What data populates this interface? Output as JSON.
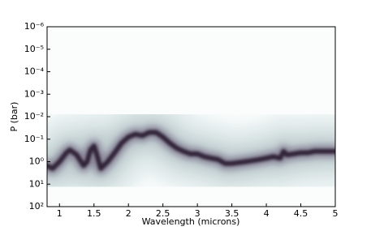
{
  "chart_data": {
    "type": "heatmap",
    "x_label": "Wavelength (microns)",
    "y_label": "P (bar)",
    "x": [
      0.82,
      0.9,
      1.0,
      1.1,
      1.15,
      1.25,
      1.35,
      1.4,
      1.45,
      1.5,
      1.55,
      1.6,
      1.7,
      1.8,
      1.9,
      2.0,
      2.1,
      2.2,
      2.3,
      2.4,
      2.5,
      2.6,
      2.7,
      2.8,
      2.9,
      3.0,
      3.1,
      3.2,
      3.3,
      3.4,
      3.5,
      3.6,
      3.7,
      3.8,
      3.9,
      4.0,
      4.1,
      4.2,
      4.25,
      4.3,
      4.4,
      4.5,
      4.6,
      4.7,
      4.8,
      4.9,
      5.0
    ],
    "values": [
      1.5,
      2,
      1.0,
      0.4,
      0.3,
      0.5,
      1.5,
      1.0,
      0.3,
      0.2,
      0.6,
      2,
      1.0,
      0.4,
      0.15,
      0.08,
      0.06,
      0.07,
      0.05,
      0.05,
      0.08,
      0.15,
      0.25,
      0.35,
      0.45,
      0.45,
      0.6,
      0.7,
      0.8,
      1.2,
      1.2,
      1.1,
      1.0,
      0.9,
      0.8,
      0.7,
      0.6,
      0.7,
      0.35,
      0.5,
      0.45,
      0.4,
      0.4,
      0.35,
      0.35,
      0.35,
      0.35
    ],
    "color": "#2a1f33",
    "xlim": [
      0.82,
      5.0
    ],
    "xticks": [
      1.0,
      1.5,
      2.0,
      2.5,
      3.0,
      3.5,
      4.0,
      4.5,
      5.0
    ],
    "ylim": [
      100,
      1e-06
    ],
    "log_y": true,
    "yticks": [
      {
        "value": 1e-06,
        "label": "10⁻⁶"
      },
      {
        "value": 1e-05,
        "label": "10⁻⁵"
      },
      {
        "value": 0.0001,
        "label": "10⁻⁴"
      },
      {
        "value": 0.001,
        "label": "10⁻³"
      },
      {
        "value": 0.01,
        "label": "10⁻²"
      },
      {
        "value": 0.1,
        "label": "10⁻¹"
      },
      {
        "value": 1,
        "label": "10⁰"
      },
      {
        "value": 10,
        "label": "10¹"
      },
      {
        "value": 100,
        "label": "10²"
      }
    ]
  }
}
